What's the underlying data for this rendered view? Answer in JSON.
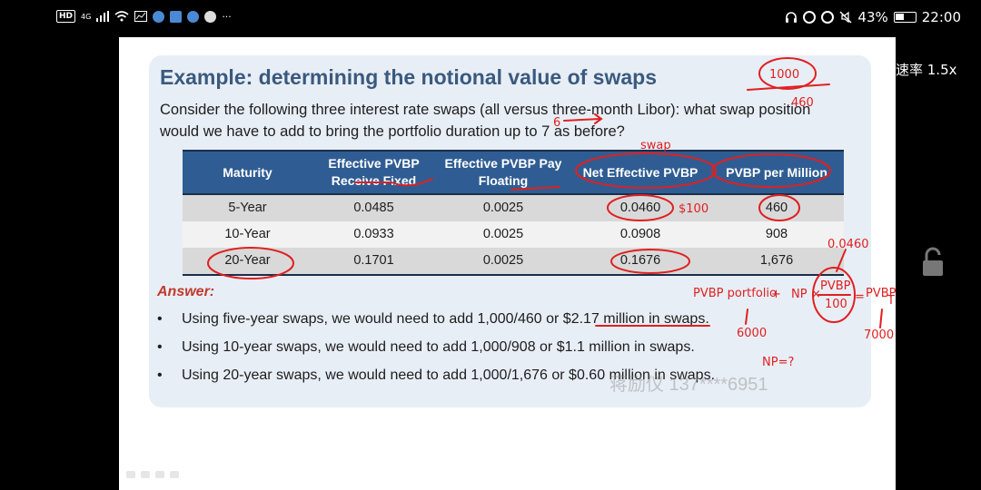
{
  "status_bar": {
    "left_badges": [
      "HD",
      "4G"
    ],
    "battery": "43%",
    "time": "22:00",
    "icons": [
      "signal-icon",
      "wifi-icon",
      "headphones-icon",
      "alarm-icon",
      "mute-icon",
      "battery-icon"
    ]
  },
  "player": {
    "speed_label": "速率 1.5x",
    "lock_icon": "lock-icon"
  },
  "slide": {
    "title": "Example: determining the notional value of swaps",
    "question": "Consider the following three interest rate swaps (all versus three-month Libor): what swap position would we have to add to bring the portfolio duration up to 7 as before?",
    "table": {
      "headers": [
        "Maturity",
        "Effective PVBP Receive Fixed",
        "Effective PVBP Pay Floating",
        "Net Effective PVBP",
        "PVBP per Million"
      ],
      "rows": [
        [
          "5-Year",
          "0.0485",
          "0.0025",
          "0.0460",
          "460"
        ],
        [
          "10-Year",
          "0.0933",
          "0.0025",
          "0.0908",
          "908"
        ],
        [
          "20-Year",
          "0.1701",
          "0.0025",
          "0.1676",
          "1,676"
        ]
      ]
    },
    "answer_label": "Answer:",
    "answers": [
      "Using five-year swaps, we would need to add 1,000/460 or $2.17 million in swaps.",
      "Using 10-year swaps, we would need to add 1,000/908 or $1.1 million in swaps.",
      "Using 20-year swaps, we would need to add 1,000/1,676 or $0.60 million in swaps."
    ],
    "bullet": "•",
    "watermark": "蒋励仪 137****6951"
  },
  "annotations": {
    "top_right_circled": "1000",
    "top_right_below": "460",
    "swap": "swap",
    "six_arrow": "6",
    "per_100": "$100",
    "value_0460": "0.0460",
    "pvbp_portfolio": "PVBP portfolio",
    "plus": "+",
    "np": "NP",
    "times": "×",
    "frac_num": "PVBP",
    "frac_den": "100",
    "equals": "=",
    "pvbp_t": "PVBP",
    "sub_t": "T",
    "six_thousand": "6000",
    "seven_thousand": "7000",
    "np_question": "NP=?"
  },
  "colors": {
    "title": "#3a5a7e",
    "table_header": "#2f5d93",
    "answer": "#c0392b",
    "ink": "#e02020",
    "panel": "#e8eef6"
  }
}
